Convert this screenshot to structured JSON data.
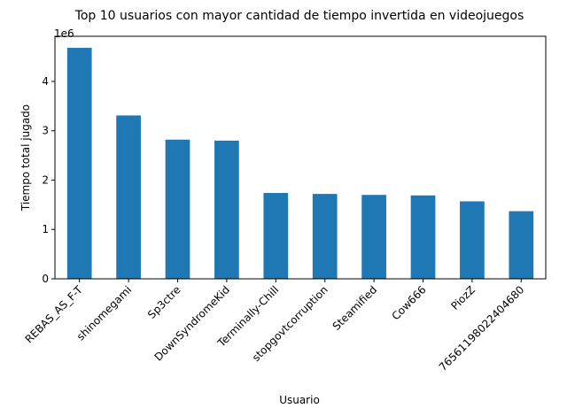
{
  "chart_data": {
    "type": "bar",
    "title": "Top 10 usuarios con mayor cantidad de tiempo invertida en videojuegos",
    "xlabel": "Usuario",
    "ylabel": "Tiempo total jugado",
    "y_offset_text": "1e6",
    "categories": [
      "REBAS_AS_F-T",
      "shinomegami",
      "Sp3ctre",
      "DownSyndromeKid",
      "Terminally-Chill",
      "stopgovtcorruption",
      "Steamified",
      "Cow666",
      "PiozZ",
      "76561198022404680"
    ],
    "values": [
      4680000,
      3310000,
      2820000,
      2800000,
      1740000,
      1720000,
      1700000,
      1690000,
      1570000,
      1370000
    ],
    "y_ticks": [
      0,
      1,
      2,
      3,
      4
    ],
    "y_tick_scale": 1000000,
    "ylim": [
      0,
      4914000
    ],
    "bar_color": "#1f77b4",
    "grid": false,
    "legend": false
  }
}
